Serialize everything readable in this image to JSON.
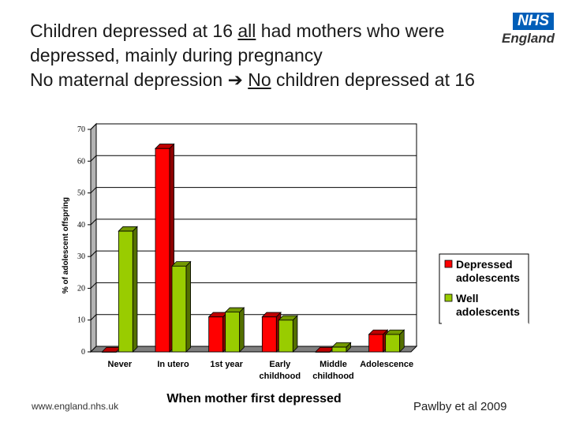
{
  "heading": {
    "line1_a": "Children depressed at 16 ",
    "line1_u": "all",
    "line1_b": " had mothers who were",
    "line2": "depressed, mainly during pregnancy",
    "line3_a": "No maternal depression ",
    "line3_arrow": "➔",
    "line3_u": "No",
    "line3_b": " children depressed at 16"
  },
  "logo": {
    "box_text": "NHS",
    "sub_text": "England",
    "color": "#005eb8"
  },
  "footer": {
    "url": "www.england.nhs.uk",
    "citation": "Pawlby et al 2009"
  },
  "chart_data": {
    "type": "bar",
    "categories": [
      "Never",
      "In utero",
      "1st  year",
      "Early childhood",
      "Middle childhood",
      "Adolescence"
    ],
    "category_lines": [
      [
        "Never"
      ],
      [
        "In utero"
      ],
      [
        "1st  year"
      ],
      [
        "Early",
        "childhood"
      ],
      [
        "Middle",
        "childhood"
      ],
      [
        "Adolescence"
      ]
    ],
    "series": [
      {
        "name": "Depressed adolescents",
        "legend_lines": [
          "Depressed",
          "adolescents"
        ],
        "color": "#ff0000",
        "values": [
          0,
          64,
          11,
          11,
          0,
          5.5
        ]
      },
      {
        "name": "Well adolescents",
        "legend_lines": [
          "Well",
          "adolescents"
        ],
        "color": "#99cc00",
        "values": [
          38,
          27,
          12.5,
          10,
          1.5,
          5.5
        ]
      }
    ],
    "title": "",
    "xlabel": "When mother first depressed",
    "ylabel": "% of adolescent offspring",
    "ylim": [
      0,
      70
    ],
    "yticks": [
      0,
      10,
      20,
      30,
      40,
      50,
      60,
      70
    ],
    "grid": true,
    "legend": "right"
  }
}
